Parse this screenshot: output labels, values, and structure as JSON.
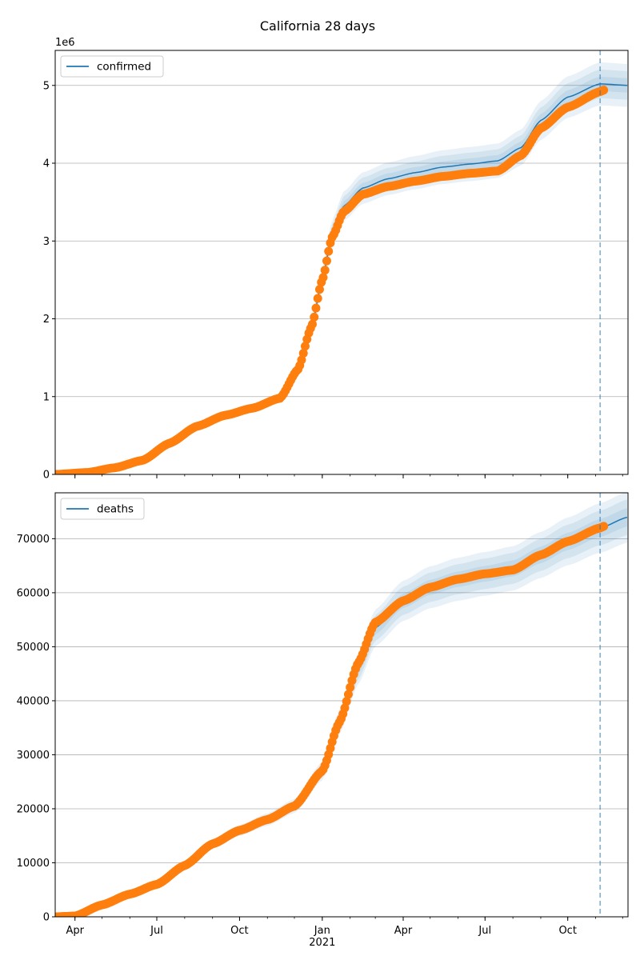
{
  "title": "California 28 days",
  "chart_data": [
    {
      "type": "line",
      "legend": "confirmed",
      "legend_position": "top-left",
      "grid": "horizontal",
      "offset_label": "1e6",
      "forecast_marker_date": "2021-11-06",
      "xlim": [
        "2020-03-10",
        "2021-12-07"
      ],
      "ylim": [
        0,
        5.45
      ],
      "y_ticks": [
        0,
        1,
        2,
        3,
        4,
        5
      ],
      "y_tick_labels": [
        "0",
        "1",
        "2",
        "3",
        "4",
        "5"
      ],
      "x_ticks": [
        "2020-04-01",
        "2020-07-01",
        "2020-10-01",
        "2021-01-01",
        "2021-04-01",
        "2021-07-01",
        "2021-10-01"
      ],
      "x_tick_labels": [
        "Apr",
        "Jul",
        "Oct",
        "Jan\n2021",
        "Apr",
        "Jul",
        "Oct"
      ],
      "model": [
        [
          "2020-03-10",
          0.0
        ],
        [
          "2020-04-15",
          0.03
        ],
        [
          "2020-05-15",
          0.09
        ],
        [
          "2020-06-15",
          0.19
        ],
        [
          "2020-07-15",
          0.4
        ],
        [
          "2020-08-15",
          0.62
        ],
        [
          "2020-09-15",
          0.76
        ],
        [
          "2020-10-15",
          0.85
        ],
        [
          "2020-11-15",
          0.98
        ],
        [
          "2020-12-05",
          1.35
        ],
        [
          "2020-12-20",
          1.9
        ],
        [
          "2021-01-01",
          2.5
        ],
        [
          "2021-01-12",
          3.1
        ],
        [
          "2021-01-25",
          3.45
        ],
        [
          "2021-02-15",
          3.68
        ],
        [
          "2021-03-15",
          3.8
        ],
        [
          "2021-04-15",
          3.88
        ],
        [
          "2021-05-15",
          3.95
        ],
        [
          "2021-06-15",
          3.99
        ],
        [
          "2021-07-15",
          4.03
        ],
        [
          "2021-08-10",
          4.2
        ],
        [
          "2021-09-01",
          4.55
        ],
        [
          "2021-10-01",
          4.85
        ],
        [
          "2021-11-06",
          5.02
        ],
        [
          "2021-12-07",
          5.0
        ]
      ],
      "band_half_widths": [
        0.1,
        0.2,
        0.3
      ],
      "observed": [
        [
          "2020-03-10",
          0.0
        ],
        [
          "2020-04-15",
          0.025
        ],
        [
          "2020-05-15",
          0.085
        ],
        [
          "2020-06-15",
          0.18
        ],
        [
          "2020-07-15",
          0.4
        ],
        [
          "2020-08-15",
          0.62
        ],
        [
          "2020-09-15",
          0.76
        ],
        [
          "2020-10-15",
          0.85
        ],
        [
          "2020-11-15",
          0.98
        ],
        [
          "2020-12-05",
          1.35
        ],
        [
          "2020-12-20",
          1.9
        ],
        [
          "2021-01-01",
          2.5
        ],
        [
          "2021-01-12",
          3.05
        ],
        [
          "2021-01-25",
          3.38
        ],
        [
          "2021-02-15",
          3.6
        ],
        [
          "2021-03-15",
          3.7
        ],
        [
          "2021-04-15",
          3.77
        ],
        [
          "2021-05-15",
          3.83
        ],
        [
          "2021-06-15",
          3.87
        ],
        [
          "2021-07-15",
          3.9
        ],
        [
          "2021-08-10",
          4.1
        ],
        [
          "2021-09-01",
          4.45
        ],
        [
          "2021-10-01",
          4.72
        ],
        [
          "2021-11-06",
          4.92
        ],
        [
          "2021-11-10",
          4.94
        ]
      ]
    },
    {
      "type": "line",
      "legend": "deaths",
      "legend_position": "top-left",
      "grid": "horizontal",
      "offset_label": "",
      "forecast_marker_date": "2021-11-06",
      "xlim": [
        "2020-03-10",
        "2021-12-07"
      ],
      "ylim": [
        0,
        78500
      ],
      "y_ticks": [
        0,
        10000,
        20000,
        30000,
        40000,
        50000,
        60000,
        70000
      ],
      "y_tick_labels": [
        "0",
        "10000",
        "20000",
        "30000",
        "40000",
        "50000",
        "60000",
        "70000"
      ],
      "x_ticks": [
        "2020-04-01",
        "2020-07-01",
        "2020-10-01",
        "2021-01-01",
        "2021-04-01",
        "2021-07-01",
        "2021-10-01"
      ],
      "x_tick_labels": [
        "Apr",
        "Jul",
        "Oct",
        "Jan\n2021",
        "Apr",
        "Jul",
        "Oct"
      ],
      "model": [
        [
          "2020-03-10",
          0
        ],
        [
          "2020-04-01",
          200
        ],
        [
          "2020-05-01",
          2200
        ],
        [
          "2020-06-01",
          4200
        ],
        [
          "2020-07-01",
          6000
        ],
        [
          "2020-08-01",
          9500
        ],
        [
          "2020-09-01",
          13500
        ],
        [
          "2020-10-01",
          16000
        ],
        [
          "2020-11-01",
          18000
        ],
        [
          "2020-12-01",
          20500
        ],
        [
          "2021-01-01",
          27000
        ],
        [
          "2021-01-20",
          36000
        ],
        [
          "2021-02-10",
          46000
        ],
        [
          "2021-03-01",
          53500
        ],
        [
          "2021-04-01",
          58500
        ],
        [
          "2021-05-01",
          61000
        ],
        [
          "2021-06-01",
          62500
        ],
        [
          "2021-07-01",
          63500
        ],
        [
          "2021-08-01",
          64500
        ],
        [
          "2021-09-01",
          67000
        ],
        [
          "2021-10-01",
          69500
        ],
        [
          "2021-11-06",
          72000
        ],
        [
          "2021-12-07",
          74000
        ]
      ],
      "band_half_widths": [
        1800,
        3500,
        5000
      ],
      "observed": [
        [
          "2020-03-10",
          0
        ],
        [
          "2020-04-01",
          150
        ],
        [
          "2020-05-01",
          2200
        ],
        [
          "2020-06-01",
          4200
        ],
        [
          "2020-07-01",
          6000
        ],
        [
          "2020-08-01",
          9500
        ],
        [
          "2020-09-01",
          13500
        ],
        [
          "2020-10-01",
          16000
        ],
        [
          "2020-11-01",
          18000
        ],
        [
          "2020-12-01",
          20500
        ],
        [
          "2021-01-01",
          27000
        ],
        [
          "2021-01-20",
          36000
        ],
        [
          "2021-02-10",
          47000
        ],
        [
          "2021-03-01",
          54500
        ],
        [
          "2021-04-01",
          58500
        ],
        [
          "2021-05-01",
          61000
        ],
        [
          "2021-06-01",
          62500
        ],
        [
          "2021-07-01",
          63500
        ],
        [
          "2021-08-01",
          64200
        ],
        [
          "2021-09-01",
          67000
        ],
        [
          "2021-10-01",
          69500
        ],
        [
          "2021-11-06",
          72000
        ],
        [
          "2021-11-10",
          72300
        ]
      ]
    }
  ]
}
